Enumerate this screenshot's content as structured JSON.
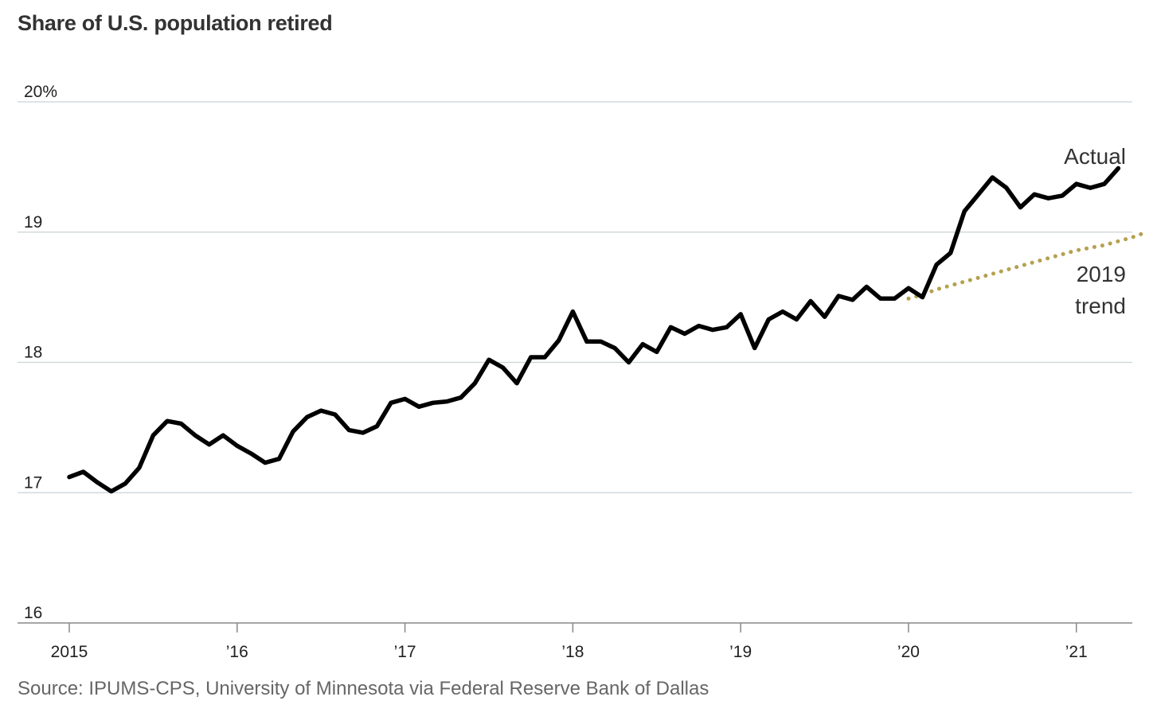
{
  "chart_data": {
    "type": "line",
    "title": "Share of U.S. population retired",
    "source": "Source: IPUMS-CPS, University of Minnesota via Federal Reserve Bank of Dallas",
    "ylim": [
      16,
      20
    ],
    "yticks": [
      {
        "value": 20,
        "label": "20%"
      },
      {
        "value": 19,
        "label": "19"
      },
      {
        "value": 18,
        "label": "18"
      },
      {
        "value": 17,
        "label": "17"
      },
      {
        "value": 16,
        "label": "16"
      }
    ],
    "xlim": [
      2015.0,
      2021.3333
    ],
    "xticks": [
      {
        "value": 2015,
        "label": "2015"
      },
      {
        "value": 2016,
        "label": "’16"
      },
      {
        "value": 2017,
        "label": "’17"
      },
      {
        "value": 2018,
        "label": "’18"
      },
      {
        "value": 2019,
        "label": "’19"
      },
      {
        "value": 2020,
        "label": "’20"
      },
      {
        "value": 2021,
        "label": "’21"
      }
    ],
    "grid": true,
    "series": [
      {
        "name": "Actual",
        "color": "#000000",
        "style": "solid",
        "start": "2015-01",
        "values": [
          17.12,
          17.16,
          17.08,
          17.01,
          17.07,
          17.19,
          17.44,
          17.55,
          17.53,
          17.44,
          17.37,
          17.44,
          17.36,
          17.3,
          17.23,
          17.26,
          17.47,
          17.58,
          17.63,
          17.6,
          17.48,
          17.46,
          17.51,
          17.69,
          17.72,
          17.66,
          17.69,
          17.7,
          17.73,
          17.84,
          18.02,
          17.96,
          17.84,
          18.04,
          18.04,
          18.17,
          18.39,
          18.16,
          18.16,
          18.11,
          18.0,
          18.14,
          18.08,
          18.27,
          18.22,
          18.28,
          18.25,
          18.27,
          18.37,
          18.11,
          18.33,
          18.39,
          18.33,
          18.47,
          18.35,
          18.51,
          18.48,
          18.58,
          18.49,
          18.49,
          18.57,
          18.5,
          18.75,
          18.84,
          19.16,
          19.29,
          19.42,
          19.34,
          19.19,
          19.29,
          19.26,
          19.28,
          19.37,
          19.34,
          19.37,
          19.49
        ]
      },
      {
        "name": "2019 trend",
        "color": "#b5a14f",
        "style": "dotted",
        "start": "2020-01",
        "values": [
          18.49,
          18.52,
          18.56,
          18.59,
          18.62,
          18.65,
          18.68,
          18.71,
          18.74,
          18.77,
          18.8,
          18.83,
          18.86,
          18.88,
          18.9,
          18.93,
          18.96,
          19.0
        ]
      }
    ]
  }
}
